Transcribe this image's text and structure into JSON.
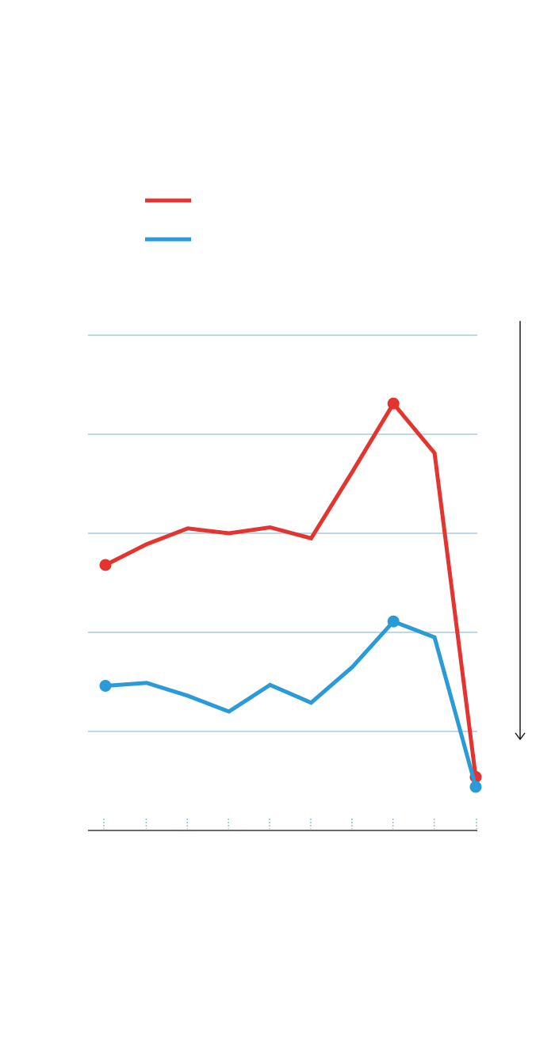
{
  "colors": {
    "series_red": "#e3342f",
    "series_blue": "#2a9bd8",
    "gridline": "#bcd7e8",
    "tick": "#8ec3e6",
    "axis": "#111111"
  },
  "chart_data": {
    "type": "line",
    "title": "",
    "xlabel": "",
    "ylabel": "",
    "x": [
      1,
      2,
      3,
      4,
      5,
      6,
      7,
      8,
      9,
      10
    ],
    "ylim": [
      0,
      5
    ],
    "grid": true,
    "legend": "top-left",
    "series": [
      {
        "color": "#e3342f",
        "values": [
          2.68,
          2.89,
          3.05,
          3.0,
          3.06,
          2.95,
          3.62,
          4.31,
          3.81,
          0.54
        ],
        "markers": [
          1,
          8,
          10
        ]
      },
      {
        "color": "#2a9bd8",
        "values": [
          1.46,
          1.49,
          1.36,
          1.2,
          1.47,
          1.29,
          1.65,
          2.11,
          1.95,
          0.44
        ],
        "markers": [
          1,
          8,
          10
        ]
      }
    ]
  }
}
